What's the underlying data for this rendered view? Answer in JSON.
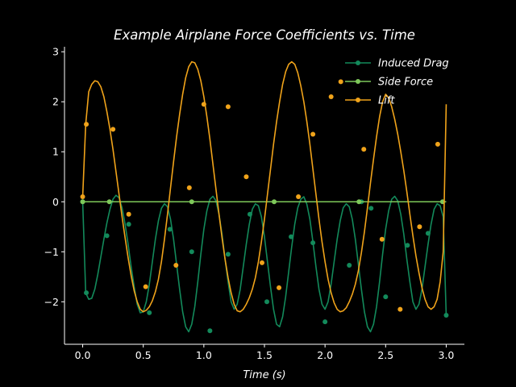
{
  "chart_data": {
    "type": "line",
    "title": "Example Airplane Force Coefficients vs. Time",
    "xlabel": "Time (s)",
    "ylabel": "",
    "xlim": [
      -0.15,
      3.15
    ],
    "ylim": [
      -2.85,
      3.1
    ],
    "xticks": [
      {
        "value": 0.0,
        "label": "0.0"
      },
      {
        "value": 0.5,
        "label": "0.5"
      },
      {
        "value": 1.0,
        "label": "1.0"
      },
      {
        "value": 1.5,
        "label": "1.5"
      },
      {
        "value": 2.0,
        "label": "2.0"
      },
      {
        "value": 2.5,
        "label": "2.5"
      },
      {
        "value": 3.0,
        "label": "3.0"
      }
    ],
    "yticks": [
      {
        "value": -2,
        "label": "−2"
      },
      {
        "value": -1,
        "label": "−1"
      },
      {
        "value": 0,
        "label": "0"
      },
      {
        "value": 1,
        "label": "1"
      },
      {
        "value": 2,
        "label": "2"
      },
      {
        "value": 3,
        "label": "3"
      }
    ],
    "grid": false,
    "legend_position": "top-right",
    "series": [
      {
        "name": "Induced Drag",
        "color": "#138a5b",
        "x": [
          0.0,
          0.025,
          0.05,
          0.075,
          0.1,
          0.125,
          0.15,
          0.175,
          0.2,
          0.225,
          0.25,
          0.275,
          0.3,
          0.325,
          0.35,
          0.375,
          0.4,
          0.425,
          0.45,
          0.475,
          0.5,
          0.525,
          0.55,
          0.575,
          0.6,
          0.625,
          0.65,
          0.675,
          0.7,
          0.725,
          0.75,
          0.775,
          0.8,
          0.825,
          0.85,
          0.875,
          0.9,
          0.925,
          0.95,
          0.975,
          1.0,
          1.025,
          1.05,
          1.075,
          1.1,
          1.125,
          1.15,
          1.175,
          1.2,
          1.225,
          1.25,
          1.275,
          1.3,
          1.325,
          1.35,
          1.375,
          1.4,
          1.425,
          1.45,
          1.475,
          1.5,
          1.525,
          1.55,
          1.575,
          1.6,
          1.625,
          1.65,
          1.675,
          1.7,
          1.725,
          1.75,
          1.775,
          1.8,
          1.825,
          1.85,
          1.875,
          1.9,
          1.925,
          1.95,
          1.975,
          2.0,
          2.025,
          2.05,
          2.075,
          2.1,
          2.125,
          2.15,
          2.175,
          2.2,
          2.225,
          2.25,
          2.275,
          2.3,
          2.325,
          2.35,
          2.375,
          2.4,
          2.425,
          2.45,
          2.475,
          2.5,
          2.525,
          2.55,
          2.575,
          2.6,
          2.625,
          2.65,
          2.675,
          2.7,
          2.725,
          2.75,
          2.775,
          2.8,
          2.825,
          2.85,
          2.875,
          2.9,
          2.925,
          2.95,
          2.975,
          3.0
        ],
        "y": [
          0.0,
          -1.82,
          -1.95,
          -1.93,
          -1.75,
          -1.45,
          -1.1,
          -0.75,
          -0.42,
          -0.15,
          0.05,
          0.13,
          0.08,
          -0.12,
          -0.45,
          -0.85,
          -1.3,
          -1.7,
          -2.05,
          -2.22,
          -2.2,
          -2.0,
          -1.65,
          -1.2,
          -0.75,
          -0.38,
          -0.13,
          -0.04,
          -0.1,
          -0.35,
          -0.75,
          -1.25,
          -1.75,
          -2.2,
          -2.5,
          -2.6,
          -2.45,
          -2.1,
          -1.6,
          -1.05,
          -0.55,
          -0.18,
          0.05,
          0.11,
          0.02,
          -0.25,
          -0.65,
          -1.15,
          -1.6,
          -2.0,
          -2.15,
          -2.05,
          -1.75,
          -1.3,
          -0.85,
          -0.45,
          -0.15,
          -0.04,
          -0.08,
          -0.3,
          -0.7,
          -1.2,
          -1.7,
          -2.15,
          -2.45,
          -2.5,
          -2.3,
          -1.9,
          -1.4,
          -0.9,
          -0.45,
          -0.12,
          0.05,
          0.1,
          -0.05,
          -0.35,
          -0.8,
          -1.3,
          -1.75,
          -2.05,
          -2.15,
          -2.0,
          -1.65,
          -1.2,
          -0.75,
          -0.38,
          -0.12,
          -0.04,
          -0.1,
          -0.35,
          -0.75,
          -1.25,
          -1.75,
          -2.2,
          -2.5,
          -2.6,
          -2.45,
          -2.1,
          -1.6,
          -1.05,
          -0.55,
          -0.18,
          0.05,
          0.11,
          0.02,
          -0.25,
          -0.65,
          -1.15,
          -1.6,
          -2.0,
          -2.15,
          -2.05,
          -1.75,
          -1.3,
          -0.85,
          -0.45,
          -0.15,
          -0.04,
          -0.08,
          -0.3,
          -2.28
        ],
        "marker_x": [
          0.0,
          0.03,
          0.2,
          0.38,
          0.55,
          0.72,
          0.9,
          1.05,
          1.2,
          1.38,
          1.52,
          1.72,
          1.9,
          2.0,
          2.2,
          2.3,
          2.38,
          2.5,
          2.68,
          2.85,
          3.0
        ],
        "marker_y": [
          0.0,
          -1.82,
          -0.68,
          -0.45,
          -2.22,
          -0.55,
          -1.0,
          -2.58,
          -1.05,
          -0.25,
          -2.0,
          -0.7,
          -0.82,
          -2.4,
          -1.27,
          0.0,
          -0.13,
          -1.9,
          -0.87,
          -0.63,
          -2.27
        ]
      },
      {
        "name": "Side Force",
        "color": "#7ec85a",
        "x": [
          0.0,
          3.0
        ],
        "y": [
          0.0,
          0.0
        ],
        "marker_x": [
          0.0,
          0.22,
          0.9,
          1.58,
          2.28,
          2.97
        ],
        "marker_y": [
          0.0,
          0.0,
          0.0,
          0.0,
          0.0,
          0.0
        ]
      },
      {
        "name": "Lift",
        "color": "#f0a31a",
        "x": [
          0.0,
          0.025,
          0.05,
          0.075,
          0.1,
          0.125,
          0.15,
          0.175,
          0.2,
          0.225,
          0.25,
          0.275,
          0.3,
          0.325,
          0.35,
          0.375,
          0.4,
          0.425,
          0.45,
          0.475,
          0.5,
          0.525,
          0.55,
          0.575,
          0.6,
          0.625,
          0.65,
          0.675,
          0.7,
          0.725,
          0.75,
          0.775,
          0.8,
          0.825,
          0.85,
          0.875,
          0.9,
          0.925,
          0.95,
          0.975,
          1.0,
          1.025,
          1.05,
          1.075,
          1.1,
          1.125,
          1.15,
          1.175,
          1.2,
          1.225,
          1.25,
          1.275,
          1.3,
          1.325,
          1.35,
          1.375,
          1.4,
          1.425,
          1.45,
          1.475,
          1.5,
          1.525,
          1.55,
          1.575,
          1.6,
          1.625,
          1.65,
          1.675,
          1.7,
          1.725,
          1.75,
          1.775,
          1.8,
          1.825,
          1.85,
          1.875,
          1.9,
          1.925,
          1.95,
          1.975,
          2.0,
          2.025,
          2.05,
          2.075,
          2.1,
          2.125,
          2.15,
          2.175,
          2.2,
          2.225,
          2.25,
          2.275,
          2.3,
          2.325,
          2.35,
          2.375,
          2.4,
          2.425,
          2.45,
          2.475,
          2.5,
          2.525,
          2.55,
          2.575,
          2.6,
          2.625,
          2.65,
          2.675,
          2.7,
          2.725,
          2.75,
          2.775,
          2.8,
          2.825,
          2.85,
          2.875,
          2.9,
          2.925,
          2.95,
          2.975,
          3.0
        ],
        "y": [
          0.1,
          1.55,
          2.2,
          2.35,
          2.42,
          2.4,
          2.3,
          2.1,
          1.8,
          1.45,
          1.05,
          0.6,
          0.15,
          -0.3,
          -0.72,
          -1.12,
          -1.48,
          -1.78,
          -2.0,
          -2.15,
          -2.2,
          -2.17,
          -2.1,
          -1.98,
          -1.8,
          -1.55,
          -1.2,
          -0.75,
          -0.25,
          0.28,
          0.8,
          1.3,
          1.75,
          2.15,
          2.48,
          2.7,
          2.8,
          2.78,
          2.65,
          2.42,
          2.1,
          1.7,
          1.25,
          0.75,
          0.25,
          -0.25,
          -0.72,
          -1.15,
          -1.52,
          -1.82,
          -2.05,
          -2.18,
          -2.2,
          -2.15,
          -2.05,
          -1.92,
          -1.75,
          -1.52,
          -1.2,
          -0.8,
          -0.35,
          0.15,
          0.65,
          1.15,
          1.6,
          2.0,
          2.35,
          2.6,
          2.75,
          2.8,
          2.75,
          2.58,
          2.32,
          2.0,
          1.6,
          1.15,
          0.65,
          0.15,
          -0.35,
          -0.8,
          -1.2,
          -1.55,
          -1.82,
          -2.02,
          -2.15,
          -2.2,
          -2.18,
          -2.12,
          -2.0,
          -1.85,
          -1.65,
          -1.38,
          -1.02,
          -0.6,
          -0.12,
          0.38,
          0.85,
          1.3,
          1.7,
          2.0,
          2.15,
          2.08,
          1.9,
          1.65,
          1.35,
          1.0,
          0.62,
          0.2,
          -0.25,
          -0.68,
          -1.08,
          -1.42,
          -1.72,
          -1.95,
          -2.1,
          -2.15,
          -2.1,
          -1.95,
          -1.6,
          -1.0,
          1.95
        ],
        "marker_x": [
          0.0,
          0.03,
          0.25,
          0.38,
          0.52,
          0.77,
          0.88,
          1.0,
          1.2,
          1.35,
          1.48,
          1.62,
          1.78,
          1.9,
          2.05,
          2.13,
          2.32,
          2.47,
          2.62,
          2.78,
          2.93
        ],
        "marker_y": [
          0.1,
          1.55,
          1.45,
          -0.25,
          -1.7,
          -1.27,
          0.28,
          1.95,
          1.9,
          0.5,
          -1.22,
          -1.72,
          0.1,
          1.35,
          2.1,
          2.4,
          1.05,
          -0.75,
          -2.15,
          -0.5,
          1.15
        ]
      }
    ]
  }
}
